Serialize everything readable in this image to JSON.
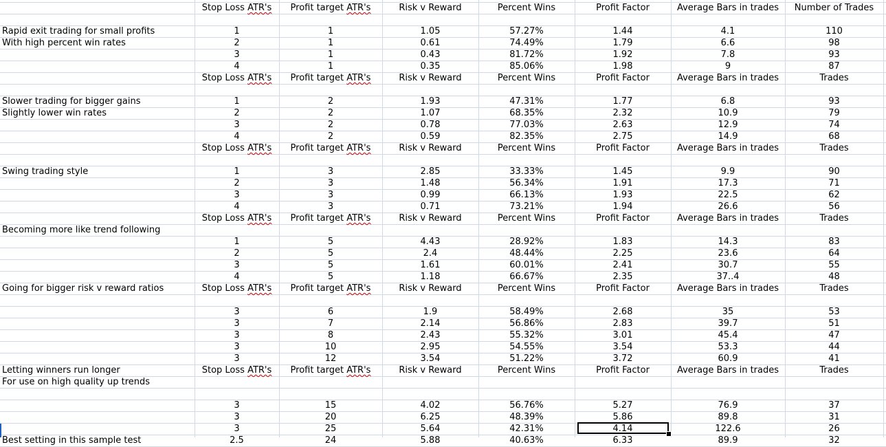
{
  "columns": {
    "stop_loss": "Stop Loss ATR's",
    "profit_target": "Profit target ATR's",
    "risk_reward": "Risk v Reward",
    "percent_wins": "Percent Wins",
    "profit_factor": "Profit Factor",
    "avg_bars": "Average Bars in trades",
    "num_trades": "Number of Trades",
    "trades": "Trades"
  },
  "rows": [
    {
      "type": "header",
      "last": "Number of Trades"
    },
    {
      "type": "blank"
    },
    {
      "type": "data",
      "label": "Rapid exit trading for small profits",
      "sl": "1",
      "pt": "1",
      "rr": "1.05",
      "pw": "57.27%",
      "pf": "1.44",
      "ab": "4.1",
      "nt": "110"
    },
    {
      "type": "data",
      "label": "With high percent win rates",
      "sl": "2",
      "pt": "1",
      "rr": "0.61",
      "pw": "74.49%",
      "pf": "1.79",
      "ab": "6.6",
      "nt": "98"
    },
    {
      "type": "data",
      "label": "",
      "sl": "3",
      "pt": "1",
      "rr": "0.43",
      "pw": "81.72%",
      "pf": "1.92",
      "ab": "7.8",
      "nt": "93"
    },
    {
      "type": "data",
      "label": "",
      "sl": "4",
      "pt": "1",
      "rr": "0.35",
      "pw": "85.06%",
      "pf": "1.98",
      "ab": "9",
      "nt": "87"
    },
    {
      "type": "header",
      "label": "",
      "last": "Trades"
    },
    {
      "type": "blank"
    },
    {
      "type": "data",
      "label": "Slower trading for bigger gains",
      "sl": "1",
      "pt": "2",
      "rr": "1.93",
      "pw": "47.31%",
      "pf": "1.77",
      "ab": "6.8",
      "nt": "93"
    },
    {
      "type": "data",
      "label": "Slightly lower win rates",
      "sl": "2",
      "pt": "2",
      "rr": "1.07",
      "pw": "68.35%",
      "pf": "2.32",
      "ab": "10.9",
      "nt": "79"
    },
    {
      "type": "data",
      "label": "",
      "sl": "3",
      "pt": "2",
      "rr": "0.78",
      "pw": "77.03%",
      "pf": "2.63",
      "ab": "12.9",
      "nt": "74"
    },
    {
      "type": "data",
      "label": "",
      "sl": "4",
      "pt": "2",
      "rr": "0.59",
      "pw": "82.35%",
      "pf": "2.75",
      "ab": "14.9",
      "nt": "68"
    },
    {
      "type": "header",
      "label": "",
      "last": "Trades"
    },
    {
      "type": "blank"
    },
    {
      "type": "data",
      "label": "Swing trading style",
      "sl": "1",
      "pt": "3",
      "rr": "2.85",
      "pw": "33.33%",
      "pf": "1.45",
      "ab": "9.9",
      "nt": "90"
    },
    {
      "type": "data",
      "label": "",
      "sl": "2",
      "pt": "3",
      "rr": "1.48",
      "pw": "56.34%",
      "pf": "1.91",
      "ab": "17.3",
      "nt": "71"
    },
    {
      "type": "data",
      "label": "",
      "sl": "3",
      "pt": "3",
      "rr": "0.99",
      "pw": "66.13%",
      "pf": "1.93",
      "ab": "22.5",
      "nt": "62"
    },
    {
      "type": "data",
      "label": "",
      "sl": "4",
      "pt": "3",
      "rr": "0.71",
      "pw": "73.21%",
      "pf": "1.94",
      "ab": "26.6",
      "nt": "56"
    },
    {
      "type": "header",
      "label": "",
      "last": "Trades"
    },
    {
      "type": "blank",
      "label": "Becoming more like trend following"
    },
    {
      "type": "data",
      "label": "",
      "sl": "1",
      "pt": "5",
      "rr": "4.43",
      "pw": "28.92%",
      "pf": "1.83",
      "ab": "14.3",
      "nt": "83"
    },
    {
      "type": "data",
      "label": "",
      "sl": "2",
      "pt": "5",
      "rr": "2.4",
      "pw": "48.44%",
      "pf": "2.25",
      "ab": "23.6",
      "nt": "64"
    },
    {
      "type": "data",
      "label": "",
      "sl": "3",
      "pt": "5",
      "rr": "1.61",
      "pw": "60.01%",
      "pf": "2.41",
      "ab": "30.7",
      "nt": "55"
    },
    {
      "type": "data",
      "label": "",
      "sl": "4",
      "pt": "5",
      "rr": "1.18",
      "pw": "66.67%",
      "pf": "2.35",
      "ab": "37..4",
      "nt": "48"
    },
    {
      "type": "header",
      "label": "Going for bigger risk v reward ratios",
      "last": "Trades"
    },
    {
      "type": "blank"
    },
    {
      "type": "data",
      "label": "",
      "sl": "3",
      "pt": "6",
      "rr": "1.9",
      "pw": "58.49%",
      "pf": "2.68",
      "ab": "35",
      "nt": "53"
    },
    {
      "type": "data",
      "label": "",
      "sl": "3",
      "pt": "7",
      "rr": "2.14",
      "pw": "56.86%",
      "pf": "2.83",
      "ab": "39.7",
      "nt": "51"
    },
    {
      "type": "data",
      "label": "",
      "sl": "3",
      "pt": "8",
      "rr": "2.43",
      "pw": "55.32%",
      "pf": "3.01",
      "ab": "45.4",
      "nt": "47"
    },
    {
      "type": "data",
      "label": "",
      "sl": "3",
      "pt": "10",
      "rr": "2.95",
      "pw": "54.55%",
      "pf": "3.54",
      "ab": "53.3",
      "nt": "44"
    },
    {
      "type": "data",
      "label": "",
      "sl": "3",
      "pt": "12",
      "rr": "3.54",
      "pw": "51.22%",
      "pf": "3.72",
      "ab": "60.9",
      "nt": "41"
    },
    {
      "type": "header",
      "label": "Letting winners run longer",
      "last": "Trades"
    },
    {
      "type": "blank",
      "label": "For use on high quality up trends"
    },
    {
      "type": "blank"
    },
    {
      "type": "data",
      "label": "",
      "sl": "3",
      "pt": "15",
      "rr": "4.02",
      "pw": "56.76%",
      "pf": "5.27",
      "ab": "76.9",
      "nt": "37"
    },
    {
      "type": "data",
      "label": "",
      "sl": "3",
      "pt": "20",
      "rr": "6.25",
      "pw": "48.39%",
      "pf": "5.86",
      "ab": "89.8",
      "nt": "31"
    },
    {
      "type": "data",
      "label": "",
      "sl": "3",
      "pt": "25",
      "rr": "5.64",
      "pw": "42.31%",
      "pf": "4.14",
      "ab": "122.6",
      "nt": "26"
    },
    {
      "type": "data",
      "label": "Best setting in this sample test",
      "sl": "2.5",
      "pt": "24",
      "rr": "5.88",
      "pw": "40.63%",
      "pf": "6.33",
      "ab": "89.9",
      "nt": "32"
    }
  ]
}
